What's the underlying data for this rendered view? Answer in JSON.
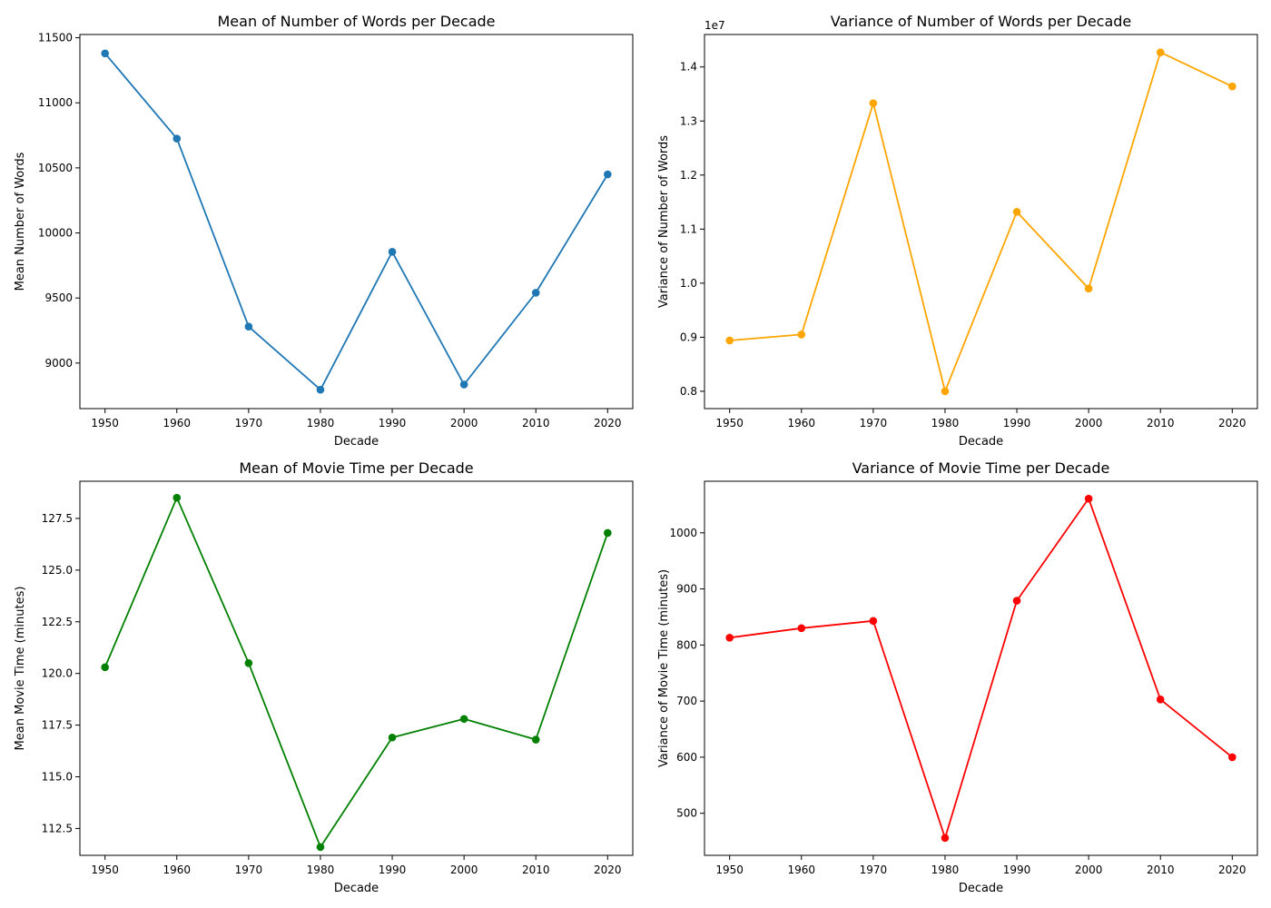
{
  "chart_data": [
    {
      "type": "line",
      "title": "Mean of Number of Words per Decade",
      "xlabel": "Decade",
      "ylabel": "Mean Number of Words",
      "x": [
        1950,
        1960,
        1970,
        1980,
        1990,
        2000,
        2010,
        2020
      ],
      "values": [
        11380,
        10725,
        9280,
        8795,
        9855,
        8835,
        9540,
        10450
      ],
      "color": "#1f77b4",
      "xlim": [
        1946.5,
        2023.5
      ],
      "ylim": [
        8650,
        11525
      ],
      "yticks": [
        9000,
        9500,
        10000,
        10500,
        11000,
        11500
      ],
      "ytick_labels": [
        "9000",
        "9500",
        "10000",
        "10500",
        "11000",
        "11500"
      ],
      "xticks": [
        1950,
        1960,
        1970,
        1980,
        1990,
        2000,
        2010,
        2020
      ],
      "xtick_labels": [
        "1950",
        "1960",
        "1970",
        "1980",
        "1990",
        "2000",
        "2010",
        "2020"
      ],
      "offset_text": "",
      "grid": false
    },
    {
      "type": "line",
      "title": "Variance of Number of Words per Decade",
      "xlabel": "Decade",
      "ylabel": "Variance of Number of Words",
      "x": [
        1950,
        1960,
        1970,
        1980,
        1990,
        2000,
        2010,
        2020
      ],
      "values": [
        8940000,
        9050000,
        13330000,
        8000000,
        11320000,
        9900000,
        14270000,
        13640000
      ],
      "color": "#ffa500",
      "xlim": [
        1946.5,
        2023.5
      ],
      "ylim": [
        7680000,
        14600000
      ],
      "yticks": [
        8000000,
        9000000,
        10000000,
        11000000,
        12000000,
        13000000,
        14000000
      ],
      "ytick_labels": [
        "0.8",
        "0.9",
        "1.0",
        "1.1",
        "1.2",
        "1.3",
        "1.4"
      ],
      "xticks": [
        1950,
        1960,
        1970,
        1980,
        1990,
        2000,
        2010,
        2020
      ],
      "xtick_labels": [
        "1950",
        "1960",
        "1970",
        "1980",
        "1990",
        "2000",
        "2010",
        "2020"
      ],
      "offset_text": "1e7",
      "grid": false
    },
    {
      "type": "line",
      "title": "Mean of Movie Time per Decade",
      "xlabel": "Decade",
      "ylabel": "Mean Movie Time (minutes)",
      "x": [
        1950,
        1960,
        1970,
        1980,
        1990,
        2000,
        2010,
        2020
      ],
      "values": [
        120.3,
        128.5,
        120.5,
        111.6,
        116.9,
        117.8,
        116.8,
        126.8
      ],
      "color": "#008000",
      "xlim": [
        1946.5,
        2023.5
      ],
      "ylim": [
        111.2,
        129.3
      ],
      "yticks": [
        112.5,
        115.0,
        117.5,
        120.0,
        122.5,
        125.0,
        127.5
      ],
      "ytick_labels": [
        "112.5",
        "115.0",
        "117.5",
        "120.0",
        "122.5",
        "125.0",
        "127.5"
      ],
      "xticks": [
        1950,
        1960,
        1970,
        1980,
        1990,
        2000,
        2010,
        2020
      ],
      "xtick_labels": [
        "1950",
        "1960",
        "1970",
        "1980",
        "1990",
        "2000",
        "2010",
        "2020"
      ],
      "offset_text": "",
      "grid": false
    },
    {
      "type": "line",
      "title": "Variance of Movie Time per Decade",
      "xlabel": "Decade",
      "ylabel": "Variance of Movie Time (minutes)",
      "x": [
        1950,
        1960,
        1970,
        1980,
        1990,
        2000,
        2010,
        2020
      ],
      "values": [
        813,
        830,
        843,
        456,
        879,
        1061,
        703,
        600
      ],
      "color": "#ff0000",
      "xlim": [
        1946.5,
        2023.5
      ],
      "ylim": [
        425,
        1092
      ],
      "yticks": [
        500,
        600,
        700,
        800,
        900,
        1000
      ],
      "ytick_labels": [
        "500",
        "600",
        "700",
        "800",
        "900",
        "1000"
      ],
      "xticks": [
        1950,
        1960,
        1970,
        1980,
        1990,
        2000,
        2010,
        2020
      ],
      "xtick_labels": [
        "1950",
        "1960",
        "1970",
        "1980",
        "1990",
        "2000",
        "2010",
        "2020"
      ],
      "offset_text": "",
      "grid": false
    }
  ]
}
